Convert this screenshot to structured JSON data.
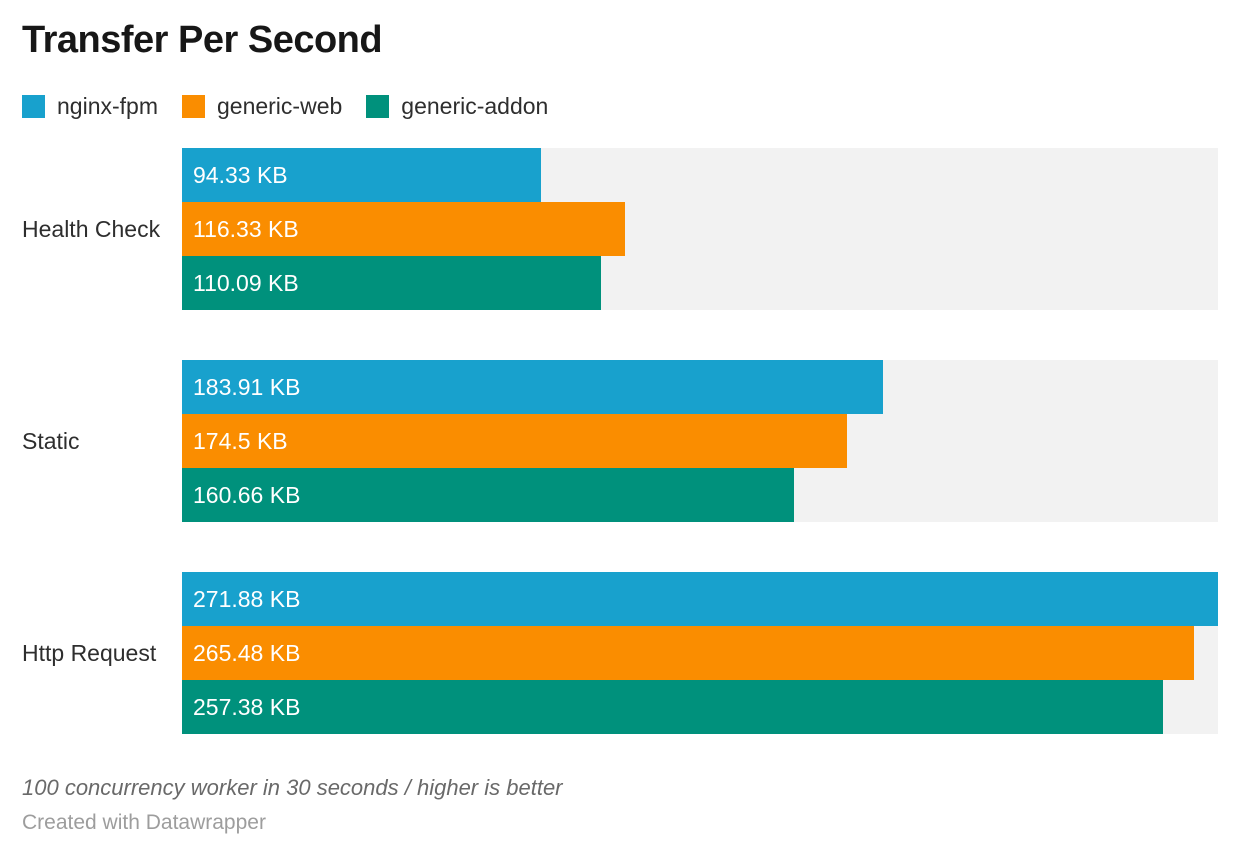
{
  "title": "Transfer Per Second",
  "legend": {
    "items": [
      {
        "label": "nginx-fpm",
        "color": "#18a1cd"
      },
      {
        "label": "generic-web",
        "color": "#fa8d00"
      },
      {
        "label": "generic-addon",
        "color": "#00917c"
      }
    ]
  },
  "chart_data": {
    "type": "bar",
    "orientation": "horizontal",
    "title": "Transfer Per Second",
    "categories": [
      "Health Check",
      "Static",
      "Http Request"
    ],
    "series": [
      {
        "name": "nginx-fpm",
        "color": "#18a1cd",
        "values": [
          94.33,
          183.91,
          271.88
        ],
        "labels": [
          "94.33 KB",
          "183.91 KB",
          "271.88 KB"
        ]
      },
      {
        "name": "generic-web",
        "color": "#fa8d00",
        "values": [
          116.33,
          174.5,
          265.48
        ],
        "labels": [
          "116.33 KB",
          "174.5 KB",
          "265.48 KB"
        ]
      },
      {
        "name": "generic-addon",
        "color": "#00917c",
        "values": [
          110.09,
          160.66,
          257.38
        ],
        "labels": [
          "110.09 KB",
          "160.66 KB",
          "257.38 KB"
        ]
      }
    ],
    "value_unit": "KB",
    "xlim": [
      0,
      271.88
    ],
    "grid": false,
    "legend_position": "top",
    "track_color": "#f2f2f2",
    "value_labels_inside": true
  },
  "footer": {
    "note": "100 concurrency worker in 30 seconds / higher is better",
    "credit": "Created with Datawrapper"
  }
}
